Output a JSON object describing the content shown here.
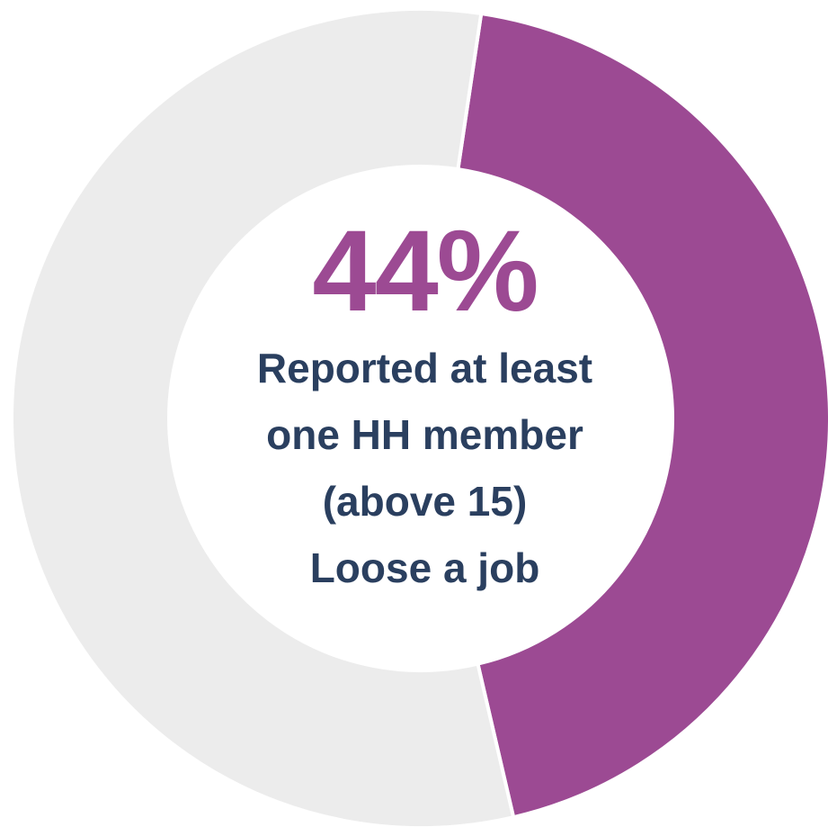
{
  "chart_data": {
    "type": "pie",
    "style": "donut",
    "slices": [
      {
        "value": 44,
        "color": "#9c4a93"
      },
      {
        "value": 56,
        "color": "#ececec"
      }
    ],
    "center_value": "44%",
    "center_label_lines": [
      "Reported at least",
      "one HH member",
      "(above 15)",
      "Loose a job"
    ],
    "colors": {
      "highlight": "#9c4a93",
      "remainder": "#ececec",
      "label": "#2a3f5f"
    }
  }
}
